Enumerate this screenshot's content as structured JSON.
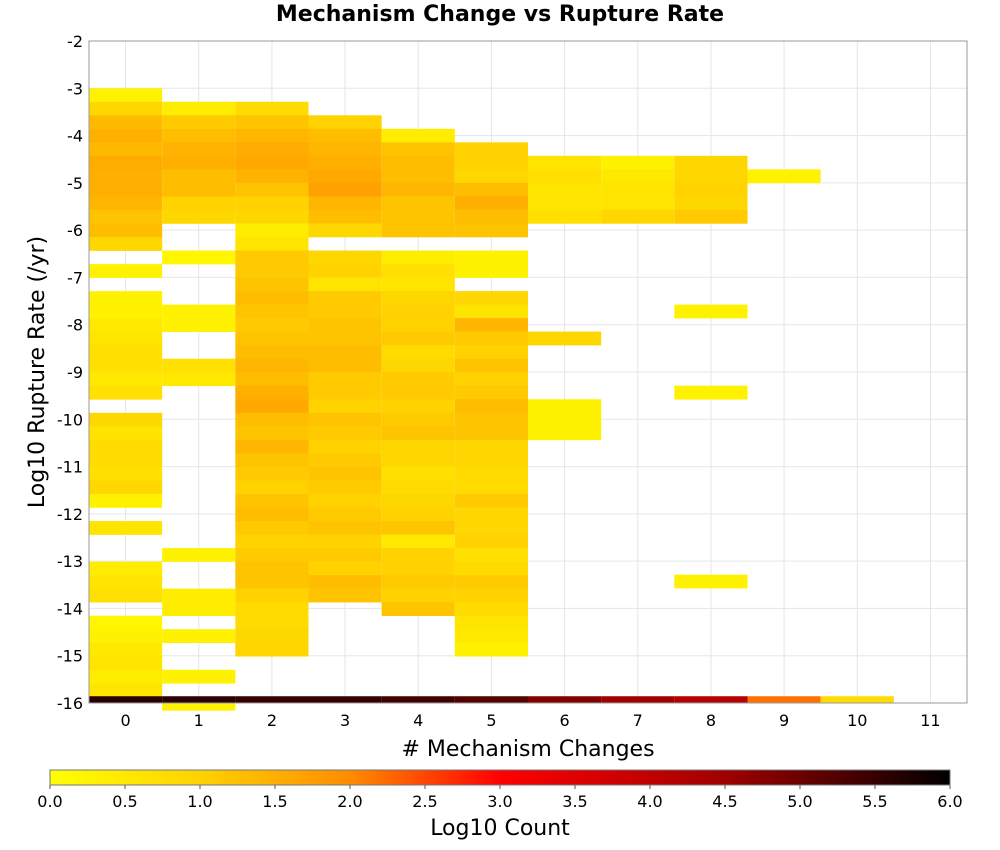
{
  "chart_data": {
    "type": "heatmap",
    "title": "Mechanism Change vs Rupture Rate",
    "xlabel": "# Mechanism Changes",
    "ylabel": "Log10 Rupture Rate (/yr)",
    "x_ticks": [
      0,
      1,
      2,
      3,
      4,
      5,
      6,
      7,
      8,
      9,
      10,
      11
    ],
    "y_ticks": [
      -2,
      -3,
      -4,
      -5,
      -6,
      -7,
      -8,
      -9,
      -10,
      -11,
      -12,
      -13,
      -14,
      -15,
      -16
    ],
    "xlim": [
      -0.5,
      11.5
    ],
    "ylim": [
      -16,
      -2
    ],
    "grid": true,
    "colorbar": {
      "label": "Log10 Count",
      "range": [
        0.0,
        6.0
      ],
      "ticks": [
        "0.0",
        "0.5",
        "1.0",
        "1.5",
        "2.0",
        "2.5",
        "3.0",
        "3.5",
        "4.0",
        "4.5",
        "5.0",
        "5.5",
        "6.0"
      ],
      "stops": [
        {
          "value": 0.0,
          "color": "#ffff00"
        },
        {
          "value": 1.0,
          "color": "#ffd200"
        },
        {
          "value": 2.0,
          "color": "#ff8c00"
        },
        {
          "value": 3.0,
          "color": "#ff0000"
        },
        {
          "value": 4.5,
          "color": "#a00000"
        },
        {
          "value": 6.0,
          "color": "#000000"
        }
      ]
    },
    "y_bin_size": 0.286,
    "cells_note": "each row: x value, y range from y_start descending, one log10 count per bin",
    "columns": [
      {
        "x": 0,
        "y_start": -3.286,
        "values": [
          0.3,
          0.9,
          1.35,
          1.5,
          1.35,
          1.55,
          1.5,
          1.5,
          1.4,
          1.2,
          1.3,
          0.9,
          null,
          0.3,
          null,
          0.3,
          0.3,
          0.5,
          0.6,
          0.7,
          0.7,
          0.5,
          0.7,
          null,
          0.9,
          0.6,
          0.8,
          0.8,
          0.7,
          0.9,
          0.3,
          null,
          0.6,
          null,
          null,
          0.4,
          0.6,
          0.7,
          null,
          0.2,
          0.3,
          0.5,
          0.6,
          0.4,
          0.6,
          null
        ]
      },
      {
        "x": 1,
        "y_start": -3.571,
        "values": [
          0.4,
          1.1,
          1.3,
          1.45,
          1.5,
          1.3,
          1.3,
          1.0,
          0.9,
          null,
          null,
          0.2,
          null,
          null,
          null,
          0.3,
          0.3,
          null,
          null,
          0.7,
          0.5,
          null,
          null,
          null,
          null,
          null,
          null,
          null,
          null,
          null,
          null,
          null,
          null,
          0.3,
          null,
          null,
          0.4,
          0.4,
          null,
          0.3,
          null,
          null,
          0.3,
          null,
          0.3,
          null
        ]
      },
      {
        "x": 2,
        "y_start": -3.571,
        "values": [
          0.8,
          1.2,
          1.4,
          1.55,
          1.6,
          1.45,
          1.2,
          1.0,
          0.9,
          0.4,
          0.6,
          1.1,
          1.1,
          1.2,
          1.3,
          1.2,
          1.1,
          1.2,
          1.3,
          1.4,
          1.3,
          1.5,
          1.6,
          1.3,
          1.2,
          1.4,
          1.2,
          1.1,
          1.0,
          1.2,
          1.3,
          1.1,
          1.0,
          1.1,
          1.2,
          1.2,
          1.0,
          0.8,
          0.8,
          0.9,
          0.9,
          null
        ]
      },
      {
        "x": 3,
        "y_start": -3.857,
        "values": [
          1.0,
          1.3,
          1.4,
          1.5,
          1.6,
          1.7,
          1.4,
          1.3,
          0.9,
          null,
          0.9,
          1.0,
          0.6,
          1.1,
          1.1,
          1.2,
          1.2,
          1.3,
          1.3,
          1.1,
          1.1,
          1.0,
          1.2,
          1.1,
          1.0,
          1.1,
          1.2,
          1.1,
          1.0,
          1.1,
          1.2,
          1.0,
          1.1,
          1.0,
          1.3,
          1.2,
          null
        ]
      },
      {
        "x": 4,
        "y_start": -4.143,
        "values": [
          0.4,
          1.2,
          1.3,
          1.3,
          1.4,
          1.2,
          1.2,
          1.2,
          null,
          0.4,
          0.7,
          0.6,
          0.9,
          1.0,
          1.0,
          1.1,
          0.8,
          0.9,
          1.1,
          1.1,
          1.0,
          1.1,
          1.2,
          0.9,
          0.9,
          0.7,
          0.8,
          0.9,
          1.0,
          1.2,
          0.5,
          1.0,
          1.0,
          1.1,
          1.0,
          1.2
        ]
      },
      {
        "x": 5,
        "y_start": -4.429,
        "values": [
          1.0,
          1.0,
          0.9,
          1.3,
          1.5,
          1.3,
          1.2,
          null,
          0.3,
          0.3,
          null,
          0.9,
          0.6,
          1.4,
          1.1,
          1.0,
          1.2,
          1.0,
          1.1,
          1.3,
          1.2,
          1.2,
          0.9,
          0.9,
          0.8,
          0.8,
          1.1,
          0.9,
          0.9,
          1.0,
          0.7,
          0.8,
          1.1,
          1.0,
          0.8,
          0.6,
          0.5,
          0.3
        ]
      },
      {
        "x": 6,
        "y_start": -4.714,
        "values": [
          0.6,
          0.7,
          0.6,
          0.6,
          0.7,
          null,
          null,
          null,
          null,
          null,
          null,
          null,
          null,
          0.9,
          null,
          null,
          null,
          null,
          0.3,
          0.3,
          0.3
        ]
      },
      {
        "x": 7,
        "y_start": -4.714,
        "values": [
          0.3,
          0.5,
          0.6,
          0.6,
          0.9
        ]
      },
      {
        "x": 8,
        "y_start": -4.714,
        "values": [
          0.9,
          0.9,
          1.0,
          0.9,
          1.1,
          null,
          null,
          null,
          null,
          null,
          null,
          0.3,
          null,
          null,
          null,
          null,
          null,
          0.3
        ]
      },
      {
        "x": 9,
        "y_start": -5.0,
        "values": [
          0.3
        ]
      },
      {
        "x": 8,
        "y_start": -13.571,
        "values": [
          0.3
        ]
      }
    ],
    "bottom_row": {
      "y_range": [
        -16.0,
        -15.857
      ],
      "values": [
        5.6,
        5.6,
        5.5,
        5.5,
        5.4,
        5.2,
        4.8,
        4.5,
        4.2,
        2.2,
        0.8,
        null
      ]
    }
  }
}
